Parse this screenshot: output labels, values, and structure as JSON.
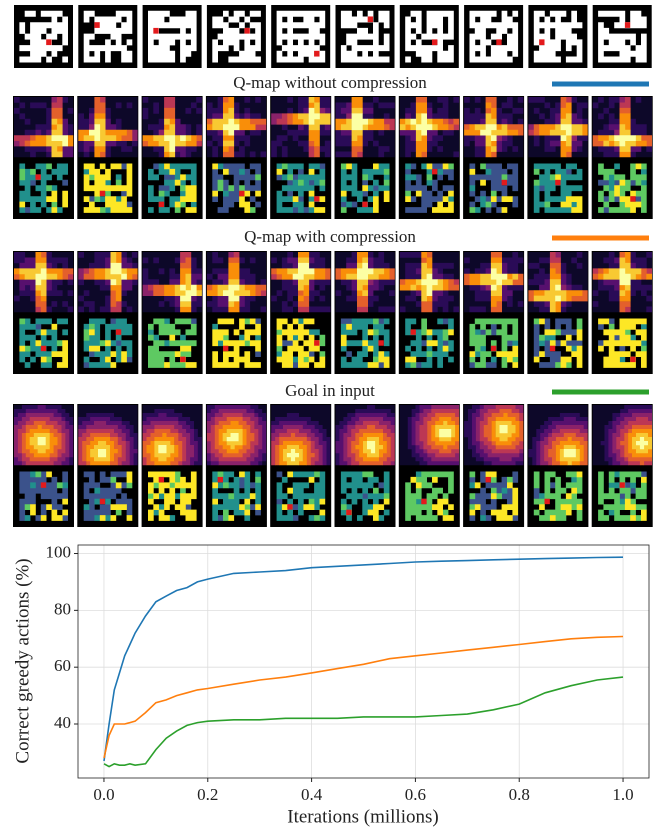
{
  "chart_data": {
    "type": "line",
    "xlabel": "Iterations (millions)",
    "ylabel": "Correct greedy actions (%)",
    "x": [
      0,
      0.01,
      0.02,
      0.03,
      0.04,
      0.05,
      0.06,
      0.08,
      0.1,
      0.12,
      0.14,
      0.16,
      0.18,
      0.2,
      0.25,
      0.3,
      0.35,
      0.4,
      0.45,
      0.5,
      0.55,
      0.6,
      0.65,
      0.7,
      0.75,
      0.8,
      0.85,
      0.9,
      0.95,
      1.0
    ],
    "series": [
      {
        "name": "Q-map without compression",
        "color": "#1f77b4",
        "values": [
          27,
          40,
          52,
          58,
          64,
          68,
          72,
          78,
          83,
          85,
          87,
          88,
          90,
          91,
          93,
          93.5,
          94,
          95,
          95.5,
          96,
          96.5,
          97,
          97.3,
          97.5,
          97.8,
          98,
          98.2,
          98.4,
          98.6,
          98.7
        ]
      },
      {
        "name": "Q-map with compression",
        "color": "#ff7f0e",
        "values": [
          28,
          36,
          40,
          40,
          40,
          40.5,
          41,
          44,
          47.5,
          48.5,
          50,
          51,
          52,
          52.5,
          54,
          55.5,
          56.5,
          58,
          59.5,
          61,
          63,
          64,
          65,
          66,
          67,
          68,
          69,
          70,
          70.5,
          70.8
        ]
      },
      {
        "name": "Goal in input",
        "color": "#2ca02c",
        "values": [
          26,
          25,
          26,
          25.5,
          25.5,
          26,
          25.5,
          26,
          31,
          35,
          37.5,
          39.5,
          40.5,
          41,
          41.5,
          41.5,
          42,
          42,
          42,
          42.5,
          42.5,
          42.5,
          43,
          43.5,
          45,
          47,
          51,
          53.5,
          55.5,
          56.5
        ]
      }
    ],
    "xlim": [
      -0.05,
      1.05
    ],
    "ylim": [
      21,
      103
    ],
    "xticks": [
      {
        "value": 0,
        "label": "0.0"
      },
      {
        "value": 0.2,
        "label": "0.2"
      },
      {
        "value": 0.4,
        "label": "0.4"
      },
      {
        "value": 0.6,
        "label": "0.6"
      },
      {
        "value": 0.8,
        "label": "0.8"
      },
      {
        "value": 1.0,
        "label": "1.0"
      }
    ],
    "yticks": [
      40,
      60,
      80,
      100
    ],
    "grid": true
  }
}
